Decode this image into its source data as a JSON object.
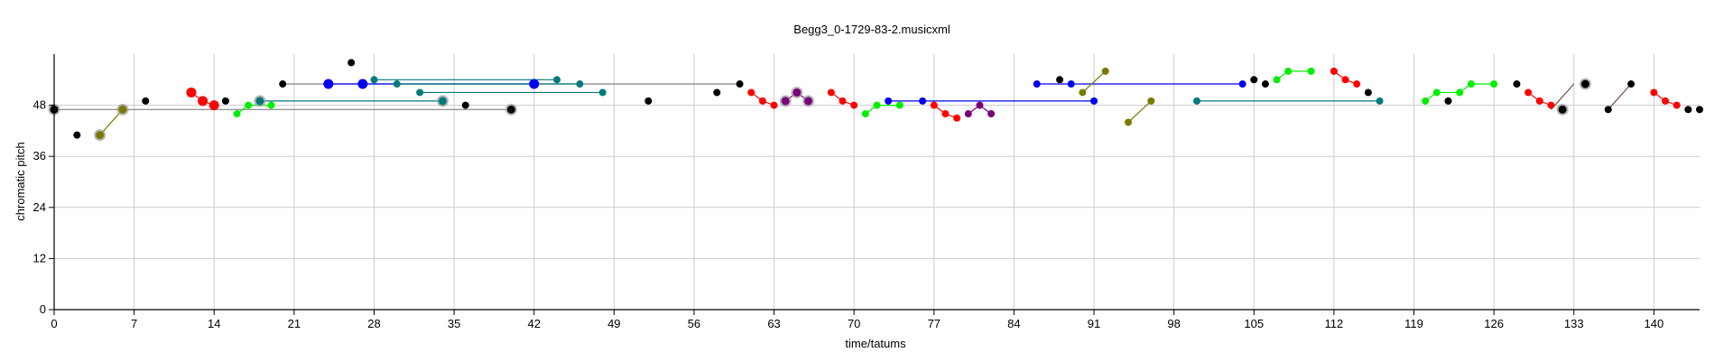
{
  "chart_data": {
    "type": "scatter",
    "title": "Begg3_0-1729-83-2.musicxml",
    "xlabel": "time/tatums",
    "ylabel": "chromatic pitch",
    "xlim": [
      0,
      144
    ],
    "ylim": [
      0,
      60
    ],
    "xticks": [
      0,
      7,
      14,
      21,
      28,
      35,
      42,
      49,
      56,
      63,
      70,
      77,
      84,
      91,
      98,
      105,
      112,
      119,
      126,
      133,
      140
    ],
    "yticks": [
      0,
      12,
      24,
      36,
      48
    ],
    "grid": true,
    "legend": "none",
    "colors": {
      "black": "#000000",
      "red": "#ff0000",
      "blue": "#0000ee",
      "green": "#00ee00",
      "teal": "#007a7a",
      "olive": "#7a7a00",
      "purple": "#7a007a",
      "gray_link": "#808080",
      "brown_link": "#7a4a4a"
    },
    "links": [
      {
        "x1": 0,
        "y1": 47,
        "x2": 40,
        "y2": 47,
        "color": "#808080"
      },
      {
        "x1": 4,
        "y1": 41,
        "x2": 6,
        "y2": 47,
        "color": "#7a7a00"
      },
      {
        "x1": 20,
        "y1": 53,
        "x2": 60,
        "y2": 53,
        "color": "#808080"
      },
      {
        "x1": 24,
        "y1": 53,
        "x2": 42,
        "y2": 53,
        "color": "#0000ee"
      },
      {
        "x1": 28,
        "y1": 54,
        "x2": 44,
        "y2": 54,
        "color": "#007a7a"
      },
      {
        "x1": 30,
        "y1": 53,
        "x2": 46,
        "y2": 53,
        "color": "#007a7a"
      },
      {
        "x1": 32,
        "y1": 51,
        "x2": 48,
        "y2": 51,
        "color": "#007a7a"
      },
      {
        "x1": 18,
        "y1": 49,
        "x2": 34,
        "y2": 49,
        "color": "#007a7a"
      },
      {
        "x1": 86,
        "y1": 53,
        "x2": 104,
        "y2": 53,
        "color": "#0000ee"
      },
      {
        "x1": 73,
        "y1": 49,
        "x2": 91,
        "y2": 49,
        "color": "#0000ee"
      },
      {
        "x1": 90,
        "y1": 51,
        "x2": 92,
        "y2": 56,
        "color": "#7a7a00"
      },
      {
        "x1": 94,
        "y1": 44,
        "x2": 96,
        "y2": 49,
        "color": "#7a7a00"
      },
      {
        "x1": 100,
        "y1": 49,
        "x2": 116,
        "y2": 49,
        "color": "#007a7a"
      },
      {
        "x1": 131,
        "y1": 47,
        "x2": 133,
        "y2": 53,
        "color": "#7a4a4a"
      },
      {
        "x1": 136,
        "y1": 47,
        "x2": 138,
        "y2": 53,
        "color": "#7a4a4a"
      }
    ],
    "lines": [
      {
        "color": "#ff0000",
        "points": [
          [
            12,
            51
          ],
          [
            13,
            49
          ],
          [
            14,
            48
          ]
        ]
      },
      {
        "color": "#00ee00",
        "points": [
          [
            16,
            46
          ],
          [
            17,
            48
          ],
          [
            18,
            48
          ],
          [
            19,
            48
          ]
        ]
      },
      {
        "color": "#ff0000",
        "points": [
          [
            61,
            51
          ],
          [
            62,
            49
          ],
          [
            63,
            48
          ]
        ]
      },
      {
        "color": "#7a007a",
        "points": [
          [
            64,
            49
          ],
          [
            65,
            51
          ],
          [
            66,
            49
          ]
        ]
      },
      {
        "color": "#ff0000",
        "points": [
          [
            68,
            51
          ],
          [
            69,
            49
          ],
          [
            70,
            48
          ]
        ]
      },
      {
        "color": "#00ee00",
        "points": [
          [
            71,
            46
          ],
          [
            72,
            48
          ],
          [
            74,
            48
          ]
        ]
      },
      {
        "color": "#ff0000",
        "points": [
          [
            77,
            48
          ],
          [
            78,
            46
          ],
          [
            79,
            45
          ]
        ]
      },
      {
        "color": "#7a007a",
        "points": [
          [
            80,
            46
          ],
          [
            81,
            48
          ],
          [
            82,
            46
          ]
        ]
      },
      {
        "color": "#00ee00",
        "points": [
          [
            107,
            54
          ],
          [
            108,
            56
          ],
          [
            110,
            56
          ]
        ]
      },
      {
        "color": "#ff0000",
        "points": [
          [
            112,
            56
          ],
          [
            113,
            54
          ],
          [
            114,
            53
          ]
        ]
      },
      {
        "color": "#00ee00",
        "points": [
          [
            120,
            49
          ],
          [
            121,
            51
          ],
          [
            123,
            51
          ],
          [
            124,
            53
          ],
          [
            126,
            53
          ]
        ]
      },
      {
        "color": "#ff0000",
        "points": [
          [
            129,
            51
          ],
          [
            130,
            49
          ],
          [
            131,
            48
          ]
        ]
      },
      {
        "color": "#ff0000",
        "points": [
          [
            140,
            51
          ],
          [
            141,
            49
          ],
          [
            142,
            48
          ]
        ]
      }
    ],
    "points": [
      {
        "x": 0,
        "y": 47,
        "color": "#000000",
        "ring": true
      },
      {
        "x": 2,
        "y": 41,
        "color": "#000000"
      },
      {
        "x": 4,
        "y": 41,
        "color": "#7a7a00",
        "ring": true
      },
      {
        "x": 6,
        "y": 47,
        "color": "#7a7a00",
        "ring": true
      },
      {
        "x": 8,
        "y": 49,
        "color": "#000000"
      },
      {
        "x": 12,
        "y": 51,
        "color": "#ff0000",
        "big": true
      },
      {
        "x": 13,
        "y": 49,
        "color": "#ff0000",
        "big": true
      },
      {
        "x": 14,
        "y": 48,
        "color": "#ff0000",
        "big": true
      },
      {
        "x": 15,
        "y": 49,
        "color": "#000000"
      },
      {
        "x": 16,
        "y": 46,
        "color": "#00ee00"
      },
      {
        "x": 17,
        "y": 48,
        "color": "#00ee00"
      },
      {
        "x": 18,
        "y": 49,
        "color": "#007a7a",
        "ring": true
      },
      {
        "x": 19,
        "y": 48,
        "color": "#00ee00"
      },
      {
        "x": 20,
        "y": 53,
        "color": "#000000"
      },
      {
        "x": 24,
        "y": 53,
        "color": "#0000ee",
        "big": true
      },
      {
        "x": 26,
        "y": 58,
        "color": "#000000"
      },
      {
        "x": 27,
        "y": 53,
        "color": "#0000ee",
        "big": true
      },
      {
        "x": 28,
        "y": 54,
        "color": "#007a7a"
      },
      {
        "x": 30,
        "y": 53,
        "color": "#007a7a"
      },
      {
        "x": 32,
        "y": 51,
        "color": "#007a7a"
      },
      {
        "x": 34,
        "y": 49,
        "color": "#007a7a",
        "ring": true
      },
      {
        "x": 36,
        "y": 48,
        "color": "#000000"
      },
      {
        "x": 40,
        "y": 47,
        "color": "#000000",
        "ring": true
      },
      {
        "x": 42,
        "y": 53,
        "color": "#0000ee",
        "big": true
      },
      {
        "x": 44,
        "y": 54,
        "color": "#007a7a"
      },
      {
        "x": 46,
        "y": 53,
        "color": "#007a7a"
      },
      {
        "x": 48,
        "y": 51,
        "color": "#007a7a"
      },
      {
        "x": 52,
        "y": 49,
        "color": "#000000"
      },
      {
        "x": 58,
        "y": 51,
        "color": "#000000"
      },
      {
        "x": 60,
        "y": 53,
        "color": "#000000"
      },
      {
        "x": 61,
        "y": 51,
        "color": "#ff0000"
      },
      {
        "x": 62,
        "y": 49,
        "color": "#ff0000"
      },
      {
        "x": 63,
        "y": 48,
        "color": "#ff0000"
      },
      {
        "x": 64,
        "y": 49,
        "color": "#7a007a",
        "ring": true
      },
      {
        "x": 65,
        "y": 51,
        "color": "#7a007a",
        "ring": true
      },
      {
        "x": 66,
        "y": 49,
        "color": "#7a007a",
        "ring": true
      },
      {
        "x": 68,
        "y": 51,
        "color": "#ff0000"
      },
      {
        "x": 69,
        "y": 49,
        "color": "#ff0000"
      },
      {
        "x": 70,
        "y": 48,
        "color": "#ff0000"
      },
      {
        "x": 71,
        "y": 46,
        "color": "#00ee00"
      },
      {
        "x": 72,
        "y": 48,
        "color": "#00ee00"
      },
      {
        "x": 73,
        "y": 49,
        "color": "#0000ee"
      },
      {
        "x": 74,
        "y": 48,
        "color": "#00ee00"
      },
      {
        "x": 76,
        "y": 49,
        "color": "#0000ee"
      },
      {
        "x": 77,
        "y": 48,
        "color": "#ff0000"
      },
      {
        "x": 78,
        "y": 46,
        "color": "#ff0000"
      },
      {
        "x": 79,
        "y": 45,
        "color": "#ff0000"
      },
      {
        "x": 80,
        "y": 46,
        "color": "#7a007a"
      },
      {
        "x": 81,
        "y": 48,
        "color": "#7a007a"
      },
      {
        "x": 82,
        "y": 46,
        "color": "#7a007a"
      },
      {
        "x": 86,
        "y": 53,
        "color": "#0000ee"
      },
      {
        "x": 88,
        "y": 54,
        "color": "#000000"
      },
      {
        "x": 89,
        "y": 53,
        "color": "#0000ee"
      },
      {
        "x": 90,
        "y": 51,
        "color": "#7a7a00"
      },
      {
        "x": 91,
        "y": 49,
        "color": "#0000ee"
      },
      {
        "x": 92,
        "y": 56,
        "color": "#7a7a00"
      },
      {
        "x": 94,
        "y": 44,
        "color": "#7a7a00"
      },
      {
        "x": 96,
        "y": 49,
        "color": "#7a7a00"
      },
      {
        "x": 100,
        "y": 49,
        "color": "#007a7a"
      },
      {
        "x": 104,
        "y": 53,
        "color": "#0000ee"
      },
      {
        "x": 105,
        "y": 54,
        "color": "#000000"
      },
      {
        "x": 106,
        "y": 53,
        "color": "#000000"
      },
      {
        "x": 107,
        "y": 54,
        "color": "#00ee00"
      },
      {
        "x": 108,
        "y": 56,
        "color": "#00ee00"
      },
      {
        "x": 110,
        "y": 56,
        "color": "#00ee00"
      },
      {
        "x": 112,
        "y": 56,
        "color": "#ff0000"
      },
      {
        "x": 113,
        "y": 54,
        "color": "#ff0000"
      },
      {
        "x": 114,
        "y": 53,
        "color": "#ff0000"
      },
      {
        "x": 115,
        "y": 51,
        "color": "#000000"
      },
      {
        "x": 116,
        "y": 49,
        "color": "#007a7a"
      },
      {
        "x": 120,
        "y": 49,
        "color": "#00ee00"
      },
      {
        "x": 121,
        "y": 51,
        "color": "#00ee00"
      },
      {
        "x": 122,
        "y": 49,
        "color": "#000000"
      },
      {
        "x": 123,
        "y": 51,
        "color": "#00ee00"
      },
      {
        "x": 124,
        "y": 53,
        "color": "#00ee00"
      },
      {
        "x": 126,
        "y": 53,
        "color": "#00ee00"
      },
      {
        "x": 128,
        "y": 53,
        "color": "#000000"
      },
      {
        "x": 129,
        "y": 51,
        "color": "#ff0000"
      },
      {
        "x": 130,
        "y": 49,
        "color": "#ff0000"
      },
      {
        "x": 131,
        "y": 48,
        "color": "#ff0000"
      },
      {
        "x": 132,
        "y": 47,
        "color": "#000000",
        "ring": true
      },
      {
        "x": 134,
        "y": 53,
        "color": "#000000",
        "ring": true
      },
      {
        "x": 136,
        "y": 47,
        "color": "#000000"
      },
      {
        "x": 138,
        "y": 53,
        "color": "#000000"
      },
      {
        "x": 140,
        "y": 51,
        "color": "#ff0000"
      },
      {
        "x": 141,
        "y": 49,
        "color": "#ff0000"
      },
      {
        "x": 142,
        "y": 48,
        "color": "#ff0000"
      },
      {
        "x": 143,
        "y": 47,
        "color": "#000000"
      },
      {
        "x": 144,
        "y": 47,
        "color": "#000000"
      }
    ]
  }
}
